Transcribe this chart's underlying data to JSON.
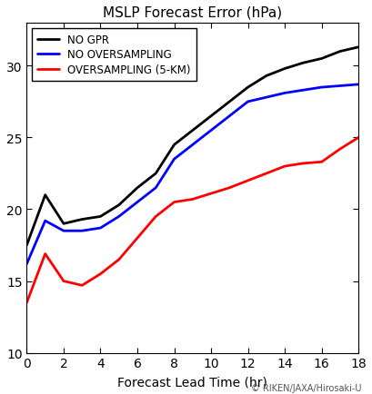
{
  "title": "MSLP Forecast Error (hPa)",
  "xlabel": "Forecast Lead Time (hr)",
  "xlim": [
    0,
    18
  ],
  "ylim": [
    10,
    33
  ],
  "yticks": [
    10,
    15,
    20,
    25,
    30
  ],
  "xticks": [
    0,
    2,
    4,
    6,
    8,
    10,
    12,
    14,
    16,
    18
  ],
  "copyright": "© RIKEN/JAXA/Hirosaki-U",
  "series": [
    {
      "label": "NO GPR",
      "color": "#000000",
      "linewidth": 2.0,
      "x": [
        0,
        1,
        2,
        3,
        4,
        5,
        6,
        7,
        8,
        9,
        10,
        11,
        12,
        13,
        14,
        15,
        16,
        17,
        18
      ],
      "y": [
        17.5,
        21.0,
        19.0,
        19.3,
        19.5,
        20.3,
        21.5,
        22.5,
        24.5,
        25.5,
        26.5,
        27.5,
        28.5,
        29.3,
        29.8,
        30.2,
        30.5,
        31.0,
        31.3
      ]
    },
    {
      "label": "NO OVERSAMPLING",
      "color": "#0000ff",
      "linewidth": 2.0,
      "x": [
        0,
        1,
        2,
        3,
        4,
        5,
        6,
        7,
        8,
        9,
        10,
        11,
        12,
        13,
        14,
        15,
        16,
        17,
        18
      ],
      "y": [
        16.2,
        19.2,
        18.5,
        18.5,
        18.7,
        19.5,
        20.5,
        21.5,
        23.5,
        24.5,
        25.5,
        26.5,
        27.5,
        27.8,
        28.1,
        28.3,
        28.5,
        28.6,
        28.7
      ]
    },
    {
      "label": "OVERSAMPLING (5-KM)",
      "color": "#ff0000",
      "linewidth": 2.0,
      "x": [
        0,
        1,
        2,
        3,
        4,
        5,
        6,
        7,
        8,
        9,
        10,
        11,
        12,
        13,
        14,
        15,
        16,
        17,
        18
      ],
      "y": [
        13.5,
        16.9,
        15.0,
        14.7,
        15.5,
        16.5,
        18.0,
        19.5,
        20.5,
        20.7,
        21.1,
        21.5,
        22.0,
        22.5,
        23.0,
        23.2,
        23.3,
        24.2,
        25.0
      ]
    }
  ],
  "title_fontsize": 11,
  "xlabel_fontsize": 10,
  "tick_labelsize": 10,
  "legend_fontsize": 8.5
}
